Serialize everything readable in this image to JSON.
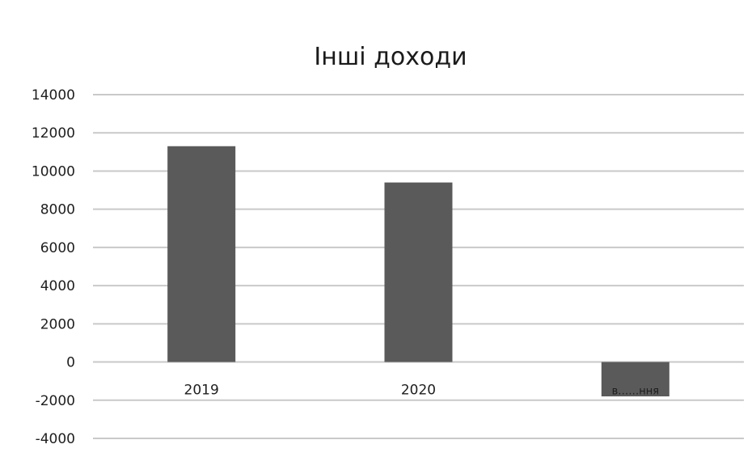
{
  "chart_data": {
    "type": "bar",
    "title": "Інші доходи",
    "xlabel": "",
    "ylabel": "",
    "categories": [
      "2019",
      "2020",
      "в……ння"
    ],
    "values": [
      11300,
      9400,
      -1800
    ],
    "ylim": [
      -4000,
      14000
    ],
    "y_ticks": [
      "14000",
      "12000",
      "10000",
      "8000",
      "6000",
      "4000",
      "2000",
      "0",
      "-2000",
      "-4000"
    ],
    "grid": true,
    "legend": "none",
    "bar_color": "#5a5a5a"
  }
}
